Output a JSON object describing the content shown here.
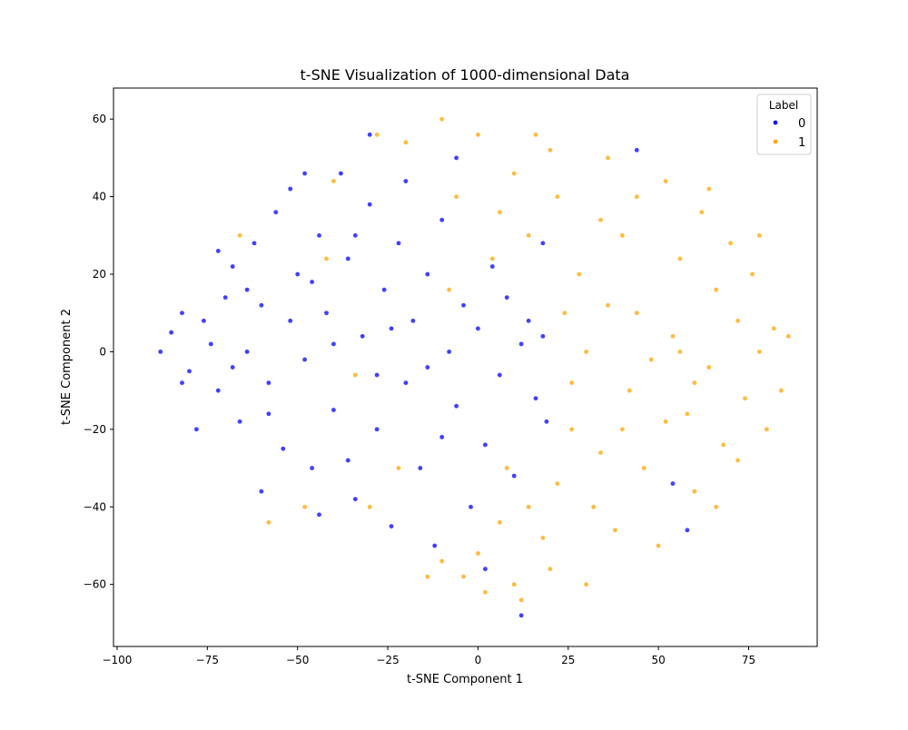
{
  "chart_data": {
    "type": "scatter",
    "title": "t-SNE Visualization of 1000-dimensional Data",
    "xlabel": "t-SNE Component 1",
    "ylabel": "t-SNE Component 2",
    "xlim": [
      -101,
      94
    ],
    "ylim": [
      -76,
      68
    ],
    "xticks": [
      -100,
      -75,
      -50,
      -25,
      0,
      25,
      50,
      75
    ],
    "xtick_labels": [
      "−100",
      "−75",
      "−50",
      "−25",
      "0",
      "25",
      "50",
      "75"
    ],
    "yticks": [
      -60,
      -40,
      -20,
      0,
      20,
      40,
      60
    ],
    "ytick_labels": [
      "−60",
      "−40",
      "−20",
      "0",
      "20",
      "40",
      "60"
    ],
    "grid": false,
    "legend": {
      "title": "Label",
      "placement": "top-right"
    },
    "series": [
      {
        "name": "0",
        "color": "#0000ff",
        "points": [
          [
            -85,
            5
          ],
          [
            -88,
            0
          ],
          [
            -82,
            10
          ],
          [
            -80,
            -5
          ],
          [
            -76,
            8
          ],
          [
            -74,
            2
          ],
          [
            -70,
            14
          ],
          [
            -72,
            -10
          ],
          [
            -68,
            22
          ],
          [
            -66,
            -18
          ],
          [
            -62,
            28
          ],
          [
            -64,
            0
          ],
          [
            -60,
            12
          ],
          [
            -58,
            -8
          ],
          [
            -56,
            36
          ],
          [
            -52,
            42
          ],
          [
            -50,
            20
          ],
          [
            -48,
            -2
          ],
          [
            -54,
            -25
          ],
          [
            -46,
            -30
          ],
          [
            -44,
            30
          ],
          [
            -42,
            10
          ],
          [
            -40,
            -15
          ],
          [
            -38,
            46
          ],
          [
            -36,
            24
          ],
          [
            -34,
            -38
          ],
          [
            -32,
            4
          ],
          [
            -30,
            38
          ],
          [
            -28,
            -20
          ],
          [
            -26,
            16
          ],
          [
            -24,
            -45
          ],
          [
            -22,
            28
          ],
          [
            -20,
            -8
          ],
          [
            -18,
            8
          ],
          [
            -16,
            -30
          ],
          [
            -14,
            20
          ],
          [
            -12,
            -50
          ],
          [
            -10,
            34
          ],
          [
            -8,
            0
          ],
          [
            -6,
            -14
          ],
          [
            -4,
            12
          ],
          [
            -2,
            -40
          ],
          [
            0,
            6
          ],
          [
            2,
            -24
          ],
          [
            4,
            22
          ],
          [
            6,
            -6
          ],
          [
            8,
            14
          ],
          [
            10,
            -32
          ],
          [
            12,
            2
          ],
          [
            14,
            8
          ],
          [
            16,
            -12
          ],
          [
            18,
            4
          ],
          [
            19,
            -18
          ],
          [
            -78,
            -20
          ],
          [
            -72,
            26
          ],
          [
            -60,
            -36
          ],
          [
            -44,
            -42
          ],
          [
            -48,
            46
          ],
          [
            -30,
            56
          ],
          [
            -20,
            44
          ],
          [
            -36,
            -28
          ],
          [
            -52,
            8
          ],
          [
            -64,
            16
          ],
          [
            -40,
            2
          ],
          [
            -28,
            -6
          ],
          [
            -14,
            -4
          ],
          [
            2,
            -56
          ],
          [
            12,
            -68
          ],
          [
            58,
            -46
          ],
          [
            54,
            -34
          ],
          [
            44,
            52
          ],
          [
            18,
            28
          ],
          [
            -6,
            50
          ],
          [
            -34,
            30
          ],
          [
            -46,
            18
          ],
          [
            -58,
            -16
          ],
          [
            -68,
            -4
          ],
          [
            -82,
            -8
          ],
          [
            -24,
            6
          ],
          [
            -10,
            -22
          ]
        ]
      },
      {
        "name": "1",
        "color": "#ffa500",
        "points": [
          [
            22,
            40
          ],
          [
            28,
            20
          ],
          [
            30,
            0
          ],
          [
            26,
            -20
          ],
          [
            32,
            -40
          ],
          [
            36,
            50
          ],
          [
            40,
            30
          ],
          [
            44,
            10
          ],
          [
            42,
            -10
          ],
          [
            46,
            -30
          ],
          [
            50,
            -50
          ],
          [
            52,
            44
          ],
          [
            56,
            24
          ],
          [
            54,
            4
          ],
          [
            58,
            -16
          ],
          [
            60,
            -36
          ],
          [
            62,
            36
          ],
          [
            66,
            16
          ],
          [
            64,
            -4
          ],
          [
            68,
            -24
          ],
          [
            70,
            28
          ],
          [
            72,
            8
          ],
          [
            74,
            -12
          ],
          [
            76,
            20
          ],
          [
            78,
            0
          ],
          [
            80,
            -20
          ],
          [
            82,
            6
          ],
          [
            84,
            -10
          ],
          [
            24,
            10
          ],
          [
            34,
            34
          ],
          [
            38,
            -46
          ],
          [
            48,
            -2
          ],
          [
            60,
            -8
          ],
          [
            72,
            -28
          ],
          [
            20,
            52
          ],
          [
            10,
            46
          ],
          [
            0,
            56
          ],
          [
            -10,
            60
          ],
          [
            -20,
            54
          ],
          [
            -28,
            56
          ],
          [
            6,
            36
          ],
          [
            14,
            30
          ],
          [
            4,
            24
          ],
          [
            -6,
            40
          ],
          [
            30,
            -60
          ],
          [
            20,
            -56
          ],
          [
            10,
            -60
          ],
          [
            0,
            -52
          ],
          [
            -10,
            -54
          ],
          [
            -14,
            -58
          ],
          [
            6,
            -44
          ],
          [
            14,
            -40
          ],
          [
            22,
            -34
          ],
          [
            8,
            -30
          ],
          [
            26,
            -8
          ],
          [
            36,
            12
          ],
          [
            40,
            -20
          ],
          [
            56,
            0
          ],
          [
            66,
            -40
          ],
          [
            52,
            -18
          ],
          [
            64,
            42
          ],
          [
            78,
            30
          ],
          [
            86,
            4
          ],
          [
            44,
            40
          ],
          [
            34,
            -26
          ],
          [
            18,
            -48
          ],
          [
            12,
            -64
          ],
          [
            2,
            -62
          ],
          [
            -4,
            -58
          ],
          [
            16,
            56
          ],
          [
            -58,
            -44
          ],
          [
            -48,
            -40
          ],
          [
            -30,
            -40
          ],
          [
            -40,
            44
          ],
          [
            -42,
            24
          ],
          [
            -34,
            -6
          ],
          [
            -66,
            30
          ],
          [
            -22,
            -30
          ],
          [
            -8,
            16
          ]
        ]
      }
    ]
  }
}
